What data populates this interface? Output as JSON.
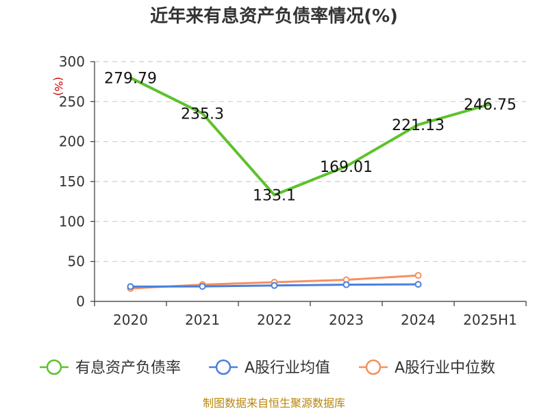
{
  "chart_data": {
    "type": "line",
    "title": "近年来有息资产负债率情况(%)",
    "y_unit": "(%)",
    "categories": [
      "2020",
      "2021",
      "2022",
      "2023",
      "2024",
      "2025H1"
    ],
    "ylim": [
      0,
      300
    ],
    "yticks": [
      0,
      50,
      100,
      150,
      200,
      250,
      300
    ],
    "grid": true,
    "legend_position": "bottom",
    "series": [
      {
        "name": "有息资产负债率",
        "color": "#5cc22b",
        "values": [
          279.79,
          235.3,
          133.1,
          169.01,
          221.13,
          246.75
        ],
        "labels": [
          "279.79",
          "235.3",
          "133.1",
          "169.01",
          "221.13",
          "246.75"
        ]
      },
      {
        "name": "A股行业均值",
        "color": "#4a7fde",
        "values": [
          18.5,
          18.8,
          19.9,
          20.9,
          21.3,
          null
        ]
      },
      {
        "name": "A股行业中位数",
        "color": "#f4905f",
        "values": [
          16.2,
          21.0,
          24.0,
          27.0,
          32.5,
          null
        ]
      }
    ]
  },
  "source": "制图数据来自恒生聚源数据库"
}
